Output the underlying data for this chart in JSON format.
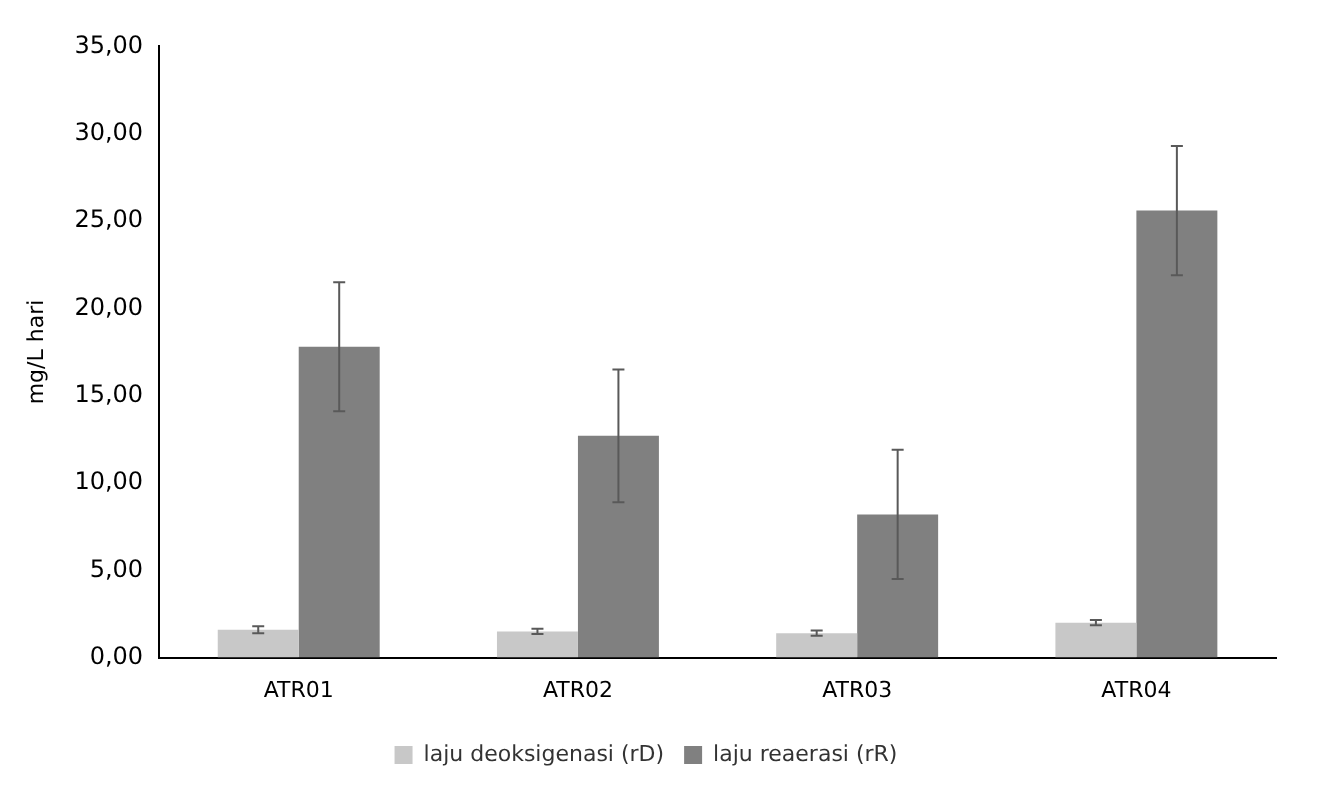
{
  "chart_data": {
    "type": "bar",
    "ylabel": "mg/L hari",
    "categories": [
      "ATR01",
      "ATR02",
      "ATR03",
      "ATR04"
    ],
    "series": [
      {
        "name": "laju deoksigenasi (rD)",
        "color": "#c8c8c8",
        "values": [
          1.6,
          1.5,
          1.4,
          2.0
        ],
        "errors": [
          0.2,
          0.15,
          0.15,
          0.15
        ]
      },
      {
        "name": "laju reaerasi (rR)",
        "color": "#808080",
        "values": [
          17.8,
          12.7,
          8.2,
          25.6
        ],
        "errors": [
          3.7,
          3.8,
          3.7,
          3.7
        ]
      }
    ],
    "ylim": [
      0,
      35
    ],
    "yticks": [
      {
        "value": 0,
        "label": "0,00"
      },
      {
        "value": 5,
        "label": "5,00"
      },
      {
        "value": 10,
        "label": "10,00"
      },
      {
        "value": 15,
        "label": "15,00"
      },
      {
        "value": 20,
        "label": "20,00"
      },
      {
        "value": 25,
        "label": "25,00"
      },
      {
        "value": 30,
        "label": "30,00"
      },
      {
        "value": 35,
        "label": "35,00"
      }
    ],
    "grid": false,
    "legend": "bottom"
  }
}
